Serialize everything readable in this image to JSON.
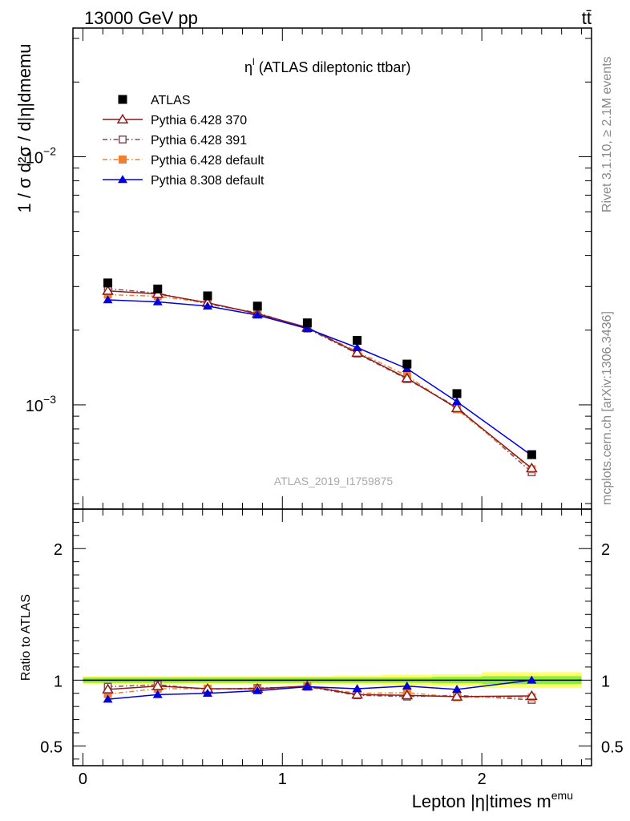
{
  "header": {
    "energy_label": "13000 GeV pp",
    "process_label": "tt̄"
  },
  "side": {
    "rivet_label": "Rivet 3.1.10, ≥ 2.1M events",
    "site_label": "mcplots.cern.ch [arXiv:1306.3436]"
  },
  "colors": {
    "atlas": "#000000",
    "pythia6_370": "#8b1a1a",
    "pythia6_391": "#7f4f5f",
    "pythia6_default": "#f08030",
    "pythia8_default": "#0000dd",
    "band_inner": "#88ee44",
    "band_outer": "#ffff66"
  },
  "chart_data": [
    {
      "type": "line",
      "title": "η",
      "title_sup": "l",
      "title_suffix": " (ATLAS dileptonic ttbar)",
      "watermark": "ATLAS_2019_I1759875",
      "ylabel": "1 / σ d²σ / d|η|dmemu",
      "yscale": "log",
      "ylim": [
        0.00038,
        0.033
      ],
      "xlim": [
        -0.05,
        2.55
      ],
      "ytick_labels": [
        {
          "value": 0.01,
          "label": "10",
          "sup": "−2"
        },
        {
          "value": 0.001,
          "label": "10",
          "sup": "−3"
        }
      ],
      "x": [
        0.125,
        0.375,
        0.625,
        0.875,
        1.125,
        1.375,
        1.625,
        1.875,
        2.25
      ],
      "series": [
        {
          "name": "ATLAS",
          "key": "atlas",
          "marker": "square-filled",
          "line": "none",
          "values": [
            0.0031,
            0.00293,
            0.00275,
            0.0025,
            0.00214,
            0.00182,
            0.00146,
            0.00111,
            0.00063
          ]
        },
        {
          "name": "Pythia 6.428 370",
          "key": "pythia6_370",
          "marker": "triangle-open",
          "line": "solid",
          "values": [
            0.00288,
            0.0028,
            0.00258,
            0.00233,
            0.00205,
            0.00162,
            0.00128,
            0.00097,
            0.000555
          ]
        },
        {
          "name": "Pythia 6.428 391",
          "key": "pythia6_391",
          "marker": "square-open",
          "line": "dashdot",
          "values": [
            0.00294,
            0.00282,
            0.00255,
            0.00235,
            0.00203,
            0.00161,
            0.00127,
            0.00098,
            0.000535
          ]
        },
        {
          "name": "Pythia 6.428 default",
          "key": "pythia6_default",
          "marker": "square-filled",
          "line": "dashdot",
          "values": [
            0.00278,
            0.00274,
            0.00258,
            0.00232,
            0.00205,
            0.00164,
            0.00131,
            0.00096,
            0.00055
          ]
        },
        {
          "name": "Pythia 8.308 default",
          "key": "pythia8_default",
          "marker": "triangle-filled",
          "line": "solid",
          "values": [
            0.00265,
            0.0026,
            0.0025,
            0.0023,
            0.00203,
            0.0017,
            0.0014,
            0.00103,
            0.000625
          ]
        }
      ]
    },
    {
      "type": "line",
      "ylabel": "Ratio to ATLAS",
      "xlabel": "Lepton |η|times m",
      "xlabel_sup": "emu",
      "ylim": [
        0.35,
        2.3
      ],
      "xlim": [
        -0.05,
        2.55
      ],
      "yticks": [
        0.5,
        1,
        2
      ],
      "ytick_labels": [
        "0.5",
        "1",
        "2"
      ],
      "xticks": [
        0,
        1,
        2
      ],
      "xtick_labels": [
        "0",
        "1",
        "2"
      ],
      "band": {
        "x": [
          0,
          0.25,
          0.5,
          0.75,
          1,
          1.25,
          1.5,
          1.75,
          2,
          2.5
        ],
        "inner_lo": [
          0.98,
          0.98,
          0.98,
          0.98,
          0.98,
          0.98,
          0.98,
          0.975,
          0.97,
          0.97
        ],
        "inner_hi": [
          1.02,
          1.02,
          1.02,
          1.02,
          1.02,
          1.02,
          1.02,
          1.025,
          1.03,
          1.03
        ],
        "outer_lo": [
          0.97,
          0.97,
          0.97,
          0.97,
          0.97,
          0.965,
          0.96,
          0.955,
          0.94,
          0.94
        ],
        "outer_hi": [
          1.03,
          1.03,
          1.03,
          1.03,
          1.03,
          1.035,
          1.04,
          1.045,
          1.06,
          1.06
        ]
      },
      "x": [
        0.125,
        0.375,
        0.625,
        0.875,
        1.125,
        1.375,
        1.625,
        1.875,
        2.25
      ],
      "series": [
        {
          "key": "pythia6_370",
          "marker": "triangle-open",
          "line": "solid",
          "values": [
            0.93,
            0.955,
            0.935,
            0.935,
            0.955,
            0.89,
            0.885,
            0.875,
            0.88
          ]
        },
        {
          "key": "pythia6_391",
          "marker": "square-open",
          "line": "dashdot",
          "values": [
            0.95,
            0.965,
            0.93,
            0.94,
            0.95,
            0.885,
            0.875,
            0.885,
            0.85
          ]
        },
        {
          "key": "pythia6_default",
          "marker": "square-filled",
          "line": "dashdot",
          "values": [
            0.895,
            0.935,
            0.935,
            0.93,
            0.955,
            0.9,
            0.905,
            0.87,
            0.87
          ]
        },
        {
          "key": "pythia8_default",
          "marker": "triangle-filled",
          "line": "solid",
          "values": [
            0.855,
            0.89,
            0.9,
            0.92,
            0.95,
            0.935,
            0.955,
            0.93,
            1.0
          ]
        }
      ]
    }
  ]
}
